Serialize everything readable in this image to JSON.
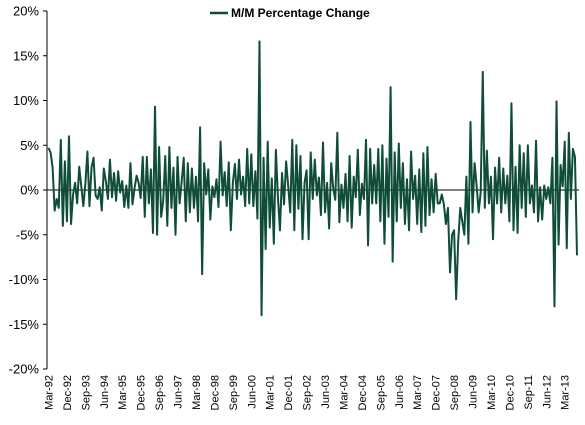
{
  "chart_data": {
    "type": "line",
    "title": "",
    "xlabel": "",
    "ylabel": "",
    "ylim": [
      -20,
      20
    ],
    "y_ticks": [
      "20%",
      "15%",
      "10%",
      "5%",
      "0%",
      "-5%",
      "-10%",
      "-15%",
      "-20%"
    ],
    "x_ticks": [
      "Mar-92",
      "Dec-92",
      "Sep-93",
      "Jun-94",
      "Mar-95",
      "Dec-95",
      "Sep-96",
      "Jun-97",
      "Mar-98",
      "Dec-98",
      "Sep-99",
      "Jun-00",
      "Mar-01",
      "Dec-01",
      "Sep-02",
      "Jun-03",
      "Mar-04",
      "Dec-04",
      "Sep-05",
      "Jun-06",
      "Mar-07",
      "Dec-07",
      "Sep-08",
      "Jun-09",
      "Mar-10",
      "Dec-10",
      "Sep-11",
      "Jun-12",
      "Mar-13"
    ],
    "legend_position": "top-center",
    "grid": false,
    "series": [
      {
        "name": "M/M Percentage Change",
        "color": "#0f4d3a",
        "x_start": "Mar-92",
        "frequency": "monthly",
        "values": [
          4.7,
          4.2,
          2.5,
          -2.3,
          -1.0,
          -2.0,
          5.6,
          -4.0,
          3.2,
          -3.5,
          6.0,
          -3.8,
          -0.5,
          0.8,
          -1.5,
          2.6,
          0.4,
          -1.8,
          0.7,
          4.3,
          -1.8,
          2.5,
          3.6,
          -0.6,
          -1.0,
          0.3,
          -2.3,
          2.4,
          1.0,
          -1.0,
          3.4,
          -0.8,
          1.9,
          -1.2,
          2.1,
          -0.3,
          1.0,
          -1.9,
          0.5,
          -2.0,
          3.0,
          -1.6,
          0.2,
          1.6,
          0.8,
          -0.9,
          3.7,
          -3.0,
          3.7,
          -1.5,
          2.3,
          -4.8,
          9.3,
          -5.0,
          4.8,
          -3.0,
          -1.2,
          3.8,
          -4.0,
          4.8,
          -2.0,
          2.5,
          -5.0,
          3.7,
          -1.5,
          0.9,
          3.6,
          -3.5,
          3.0,
          -2.5,
          2.4,
          -2.0,
          1.5,
          -3.5,
          7.0,
          -9.4,
          3.0,
          -0.5,
          2.3,
          -3.3,
          0.4,
          -0.8,
          1.2,
          -1.9,
          5.4,
          -0.6,
          2.0,
          -1.8,
          3.1,
          -4.5,
          0.8,
          2.9,
          -1.0,
          3.4,
          -0.5,
          1.5,
          -1.8,
          4.6,
          -1.5,
          4.0,
          -1.8,
          2.1,
          -3.2,
          16.6,
          -14.0,
          3.6,
          -6.6,
          5.4,
          -4.2,
          1.3,
          -6.0,
          4.5,
          -0.8,
          -4.5,
          1.9,
          -1.6,
          3.2,
          0.5,
          -2.5,
          5.6,
          -4.5,
          5.0,
          -2.1,
          3.8,
          -5.5,
          0.8,
          2.2,
          -5.5,
          4.2,
          -1.0,
          3.4,
          -0.6,
          1.4,
          -2.8,
          5.3,
          -2.5,
          0.8,
          -4.3,
          3.0,
          0.2,
          -1.1,
          6.4,
          -3.6,
          0.6,
          -2.0,
          1.8,
          -3.5,
          3.8,
          -4.2,
          1.5,
          -0.8,
          4.5,
          -2.8,
          0.7,
          -1.0,
          5.6,
          -6.2,
          4.6,
          -1.5,
          2.8,
          -1.5,
          4.6,
          -3.5,
          5.0,
          -6.0,
          3.5,
          -3.0,
          11.5,
          -8.0,
          4.2,
          -3.5,
          5.2,
          -2.0,
          3.0,
          -3.8,
          1.2,
          -4.5,
          4.3,
          -1.0,
          1.6,
          -3.8,
          2.3,
          -4.7,
          4.1,
          -4.0,
          4.8,
          -2.8,
          1.2,
          -2.5,
          1.8,
          -1.5,
          -1.5,
          -0.5,
          -1.6,
          -3.8,
          -2.0,
          -9.2,
          -5.0,
          -4.5,
          -12.2,
          -5.8,
          -2.0,
          -3.5,
          -5.0,
          1.5,
          -6.0,
          7.6,
          -2.5,
          3.0,
          0.5,
          -2.5,
          -0.2,
          13.2,
          -2.0,
          4.4,
          -1.5,
          1.5,
          -5.5,
          2.5,
          -1.5,
          3.6,
          -2.5,
          2.4,
          -1.5,
          1.6,
          -3.5,
          9.7,
          -4.5,
          2.6,
          -4.8,
          5.0,
          -2.0,
          4.1,
          -3.0,
          5.0,
          -1.5,
          0.5,
          -2.5,
          5.5,
          -3.5,
          0.3,
          -3.3,
          0.5,
          -1.0,
          0.3,
          -1.5,
          3.6,
          -13.0,
          9.9,
          -6.1,
          2.8,
          0.4,
          5.4,
          -6.5,
          6.4,
          -1.0,
          4.6,
          3.7,
          -7.3
        ]
      }
    ]
  }
}
